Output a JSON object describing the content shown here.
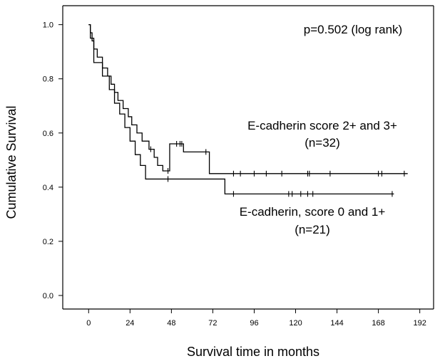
{
  "chart_data": {
    "type": "line",
    "step": true,
    "xlabel": "Survival time in months",
    "ylabel": "Cumulative Survival",
    "xlim": [
      -15,
      200
    ],
    "ylim": [
      -0.05,
      1.07
    ],
    "xticks": [
      0,
      24,
      48,
      72,
      96,
      120,
      144,
      168,
      192
    ],
    "yticks": [
      0.0,
      0.2,
      0.4,
      0.6,
      0.8,
      1.0
    ],
    "ytick_labels": [
      "0.0",
      "0.2",
      "0.4",
      "0.6",
      "0.8",
      "1.0"
    ],
    "grid": false,
    "annotations": [
      {
        "text": "p=0.502 (log rank)"
      },
      {
        "text": "E-cadherin score 2+ and 3+"
      },
      {
        "text": "(n=32)"
      },
      {
        "text": "E-cadherin, score 0 and 1+"
      },
      {
        "text": "(n=21)"
      }
    ],
    "series": [
      {
        "x": [
          0,
          1,
          2,
          3,
          5,
          8,
          11,
          13,
          15,
          17,
          20,
          23,
          25,
          28,
          31,
          35,
          38,
          40,
          43,
          47,
          55,
          70,
          185
        ],
        "y": [
          1.0,
          0.97,
          0.94,
          0.91,
          0.88,
          0.84,
          0.81,
          0.78,
          0.75,
          0.72,
          0.69,
          0.66,
          0.63,
          0.6,
          0.57,
          0.54,
          0.51,
          0.48,
          0.46,
          0.56,
          0.53,
          0.45,
          0.45
        ],
        "censored_x": [
          36,
          46,
          51,
          53,
          54,
          68,
          84,
          88,
          96,
          103,
          112,
          127,
          128,
          140,
          168,
          170,
          183
        ]
      },
      {
        "x": [
          0,
          1,
          3,
          8,
          12,
          15,
          18,
          21,
          24,
          27,
          30,
          33,
          38,
          70,
          79,
          177
        ],
        "y": [
          1.0,
          0.95,
          0.86,
          0.81,
          0.76,
          0.71,
          0.67,
          0.62,
          0.57,
          0.52,
          0.48,
          0.43,
          0.43,
          0.43,
          0.375,
          0.375
        ],
        "censored_x": [
          46,
          84,
          116,
          118,
          123,
          127,
          130,
          176
        ]
      }
    ]
  }
}
